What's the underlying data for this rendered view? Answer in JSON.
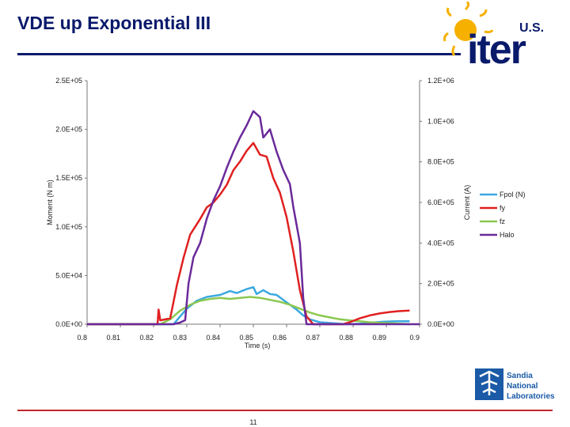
{
  "slide": {
    "title": "VDE up Exponential III",
    "page_number": "11",
    "logo_top_text": "U.S.",
    "logo_top_word": "iter",
    "logo_bottom_lines": [
      "Sandia",
      "National",
      "Laboratories"
    ]
  },
  "colors": {
    "title": "#0a1a6b",
    "Fpol": "#3aa8e0",
    "fy": "#e02020",
    "fz": "#8cc850",
    "Halo": "#6a2a9a"
  },
  "chart_data": {
    "type": "line",
    "xlabel": "Time (s)",
    "ylabel_left": "Moment (N m)",
    "ylabel_right": "Current (A)",
    "xlim": [
      0.8,
      0.9
    ],
    "ylim_left": [
      0,
      250000
    ],
    "ylim_right": [
      0,
      1200000
    ],
    "x_ticks": [
      "0.8",
      "0.81",
      "0.82",
      "0.83",
      "0.84",
      "0.85",
      "0.86",
      "0.87",
      "0.88",
      "0.89",
      "0.9"
    ],
    "y_left_ticks": [
      "0.0E+00",
      "5.0E+04",
      "1.0E+05",
      "1.5E+05",
      "2.0E+05",
      "2.5E+05"
    ],
    "y_right_ticks": [
      "0.0E+00",
      "2.0E+05",
      "4.0E+05",
      "6.0E+05",
      "8.0E+05",
      "1.0E+06",
      "1.2E+06"
    ],
    "legend": [
      "Fpol (N)",
      "fy",
      "fz",
      "Halo"
    ],
    "legend_position": "right",
    "grid": false,
    "series": [
      {
        "name": "Fpol (N)",
        "axis": "left",
        "points": [
          [
            0.8,
            0
          ],
          [
            0.823,
            0
          ],
          [
            0.826,
            0
          ],
          [
            0.828,
            8000
          ],
          [
            0.83,
            16000
          ],
          [
            0.833,
            24000
          ],
          [
            0.836,
            28000
          ],
          [
            0.84,
            30000
          ],
          [
            0.843,
            34000
          ],
          [
            0.845,
            32000
          ],
          [
            0.848,
            36000
          ],
          [
            0.85,
            38000
          ],
          [
            0.851,
            31000
          ],
          [
            0.853,
            35000
          ],
          [
            0.855,
            31000
          ],
          [
            0.857,
            30000
          ],
          [
            0.859,
            25000
          ],
          [
            0.861,
            20000
          ],
          [
            0.863,
            15000
          ],
          [
            0.865,
            9000
          ],
          [
            0.867,
            5000
          ],
          [
            0.87,
            2000
          ],
          [
            0.874,
            1000
          ],
          [
            0.878,
            0
          ],
          [
            0.882,
            500
          ],
          [
            0.885,
            1500
          ],
          [
            0.889,
            2500
          ],
          [
            0.893,
            3000
          ],
          [
            0.897,
            3000
          ]
        ]
      },
      {
        "name": "fy",
        "axis": "left",
        "points": [
          [
            0.8,
            0
          ],
          [
            0.82,
            0
          ],
          [
            0.8212,
            0
          ],
          [
            0.8215,
            15000
          ],
          [
            0.822,
            4000
          ],
          [
            0.825,
            6000
          ],
          [
            0.827,
            40000
          ],
          [
            0.829,
            68000
          ],
          [
            0.831,
            92000
          ],
          [
            0.834,
            108000
          ],
          [
            0.836,
            120000
          ],
          [
            0.838,
            125000
          ],
          [
            0.84,
            133000
          ],
          [
            0.842,
            143000
          ],
          [
            0.844,
            158000
          ],
          [
            0.846,
            167000
          ],
          [
            0.848,
            178000
          ],
          [
            0.85,
            186000
          ],
          [
            0.852,
            174000
          ],
          [
            0.854,
            172000
          ],
          [
            0.856,
            150000
          ],
          [
            0.858,
            135000
          ],
          [
            0.86,
            110000
          ],
          [
            0.862,
            75000
          ],
          [
            0.864,
            35000
          ],
          [
            0.866,
            8000
          ],
          [
            0.868,
            0
          ],
          [
            0.877,
            0
          ],
          [
            0.879,
            2000
          ],
          [
            0.882,
            6000
          ],
          [
            0.885,
            9000
          ],
          [
            0.888,
            11000
          ],
          [
            0.891,
            12500
          ],
          [
            0.894,
            13500
          ],
          [
            0.897,
            14000
          ]
        ]
      },
      {
        "name": "fz",
        "axis": "left",
        "points": [
          [
            0.8,
            0
          ],
          [
            0.822,
            0
          ],
          [
            0.825,
            5000
          ],
          [
            0.828,
            14000
          ],
          [
            0.831,
            20000
          ],
          [
            0.834,
            24000
          ],
          [
            0.837,
            26000
          ],
          [
            0.84,
            27000
          ],
          [
            0.843,
            26000
          ],
          [
            0.846,
            27000
          ],
          [
            0.849,
            28000
          ],
          [
            0.852,
            27000
          ],
          [
            0.855,
            25000
          ],
          [
            0.858,
            23000
          ],
          [
            0.861,
            20000
          ],
          [
            0.864,
            16000
          ],
          [
            0.867,
            12000
          ],
          [
            0.87,
            9000
          ],
          [
            0.873,
            7000
          ],
          [
            0.876,
            5000
          ],
          [
            0.879,
            4000
          ],
          [
            0.882,
            3000
          ],
          [
            0.885,
            2000
          ],
          [
            0.888,
            1500
          ],
          [
            0.891,
            1000
          ],
          [
            0.894,
            500
          ],
          [
            0.897,
            0
          ]
        ]
      },
      {
        "name": "Halo",
        "axis": "right",
        "points": [
          [
            0.8,
            0
          ],
          [
            0.826,
            0
          ],
          [
            0.828,
            8000
          ],
          [
            0.8295,
            20000
          ],
          [
            0.8305,
            200000
          ],
          [
            0.832,
            330000
          ],
          [
            0.834,
            400000
          ],
          [
            0.836,
            520000
          ],
          [
            0.838,
            610000
          ],
          [
            0.84,
            680000
          ],
          [
            0.842,
            770000
          ],
          [
            0.844,
            850000
          ],
          [
            0.846,
            920000
          ],
          [
            0.848,
            980000
          ],
          [
            0.85,
            1050000
          ],
          [
            0.852,
            1020000
          ],
          [
            0.853,
            920000
          ],
          [
            0.855,
            960000
          ],
          [
            0.857,
            850000
          ],
          [
            0.859,
            760000
          ],
          [
            0.861,
            690000
          ],
          [
            0.862,
            580000
          ],
          [
            0.864,
            400000
          ],
          [
            0.865,
            130000
          ],
          [
            0.866,
            0
          ],
          [
            0.9,
            0
          ]
        ]
      }
    ]
  }
}
